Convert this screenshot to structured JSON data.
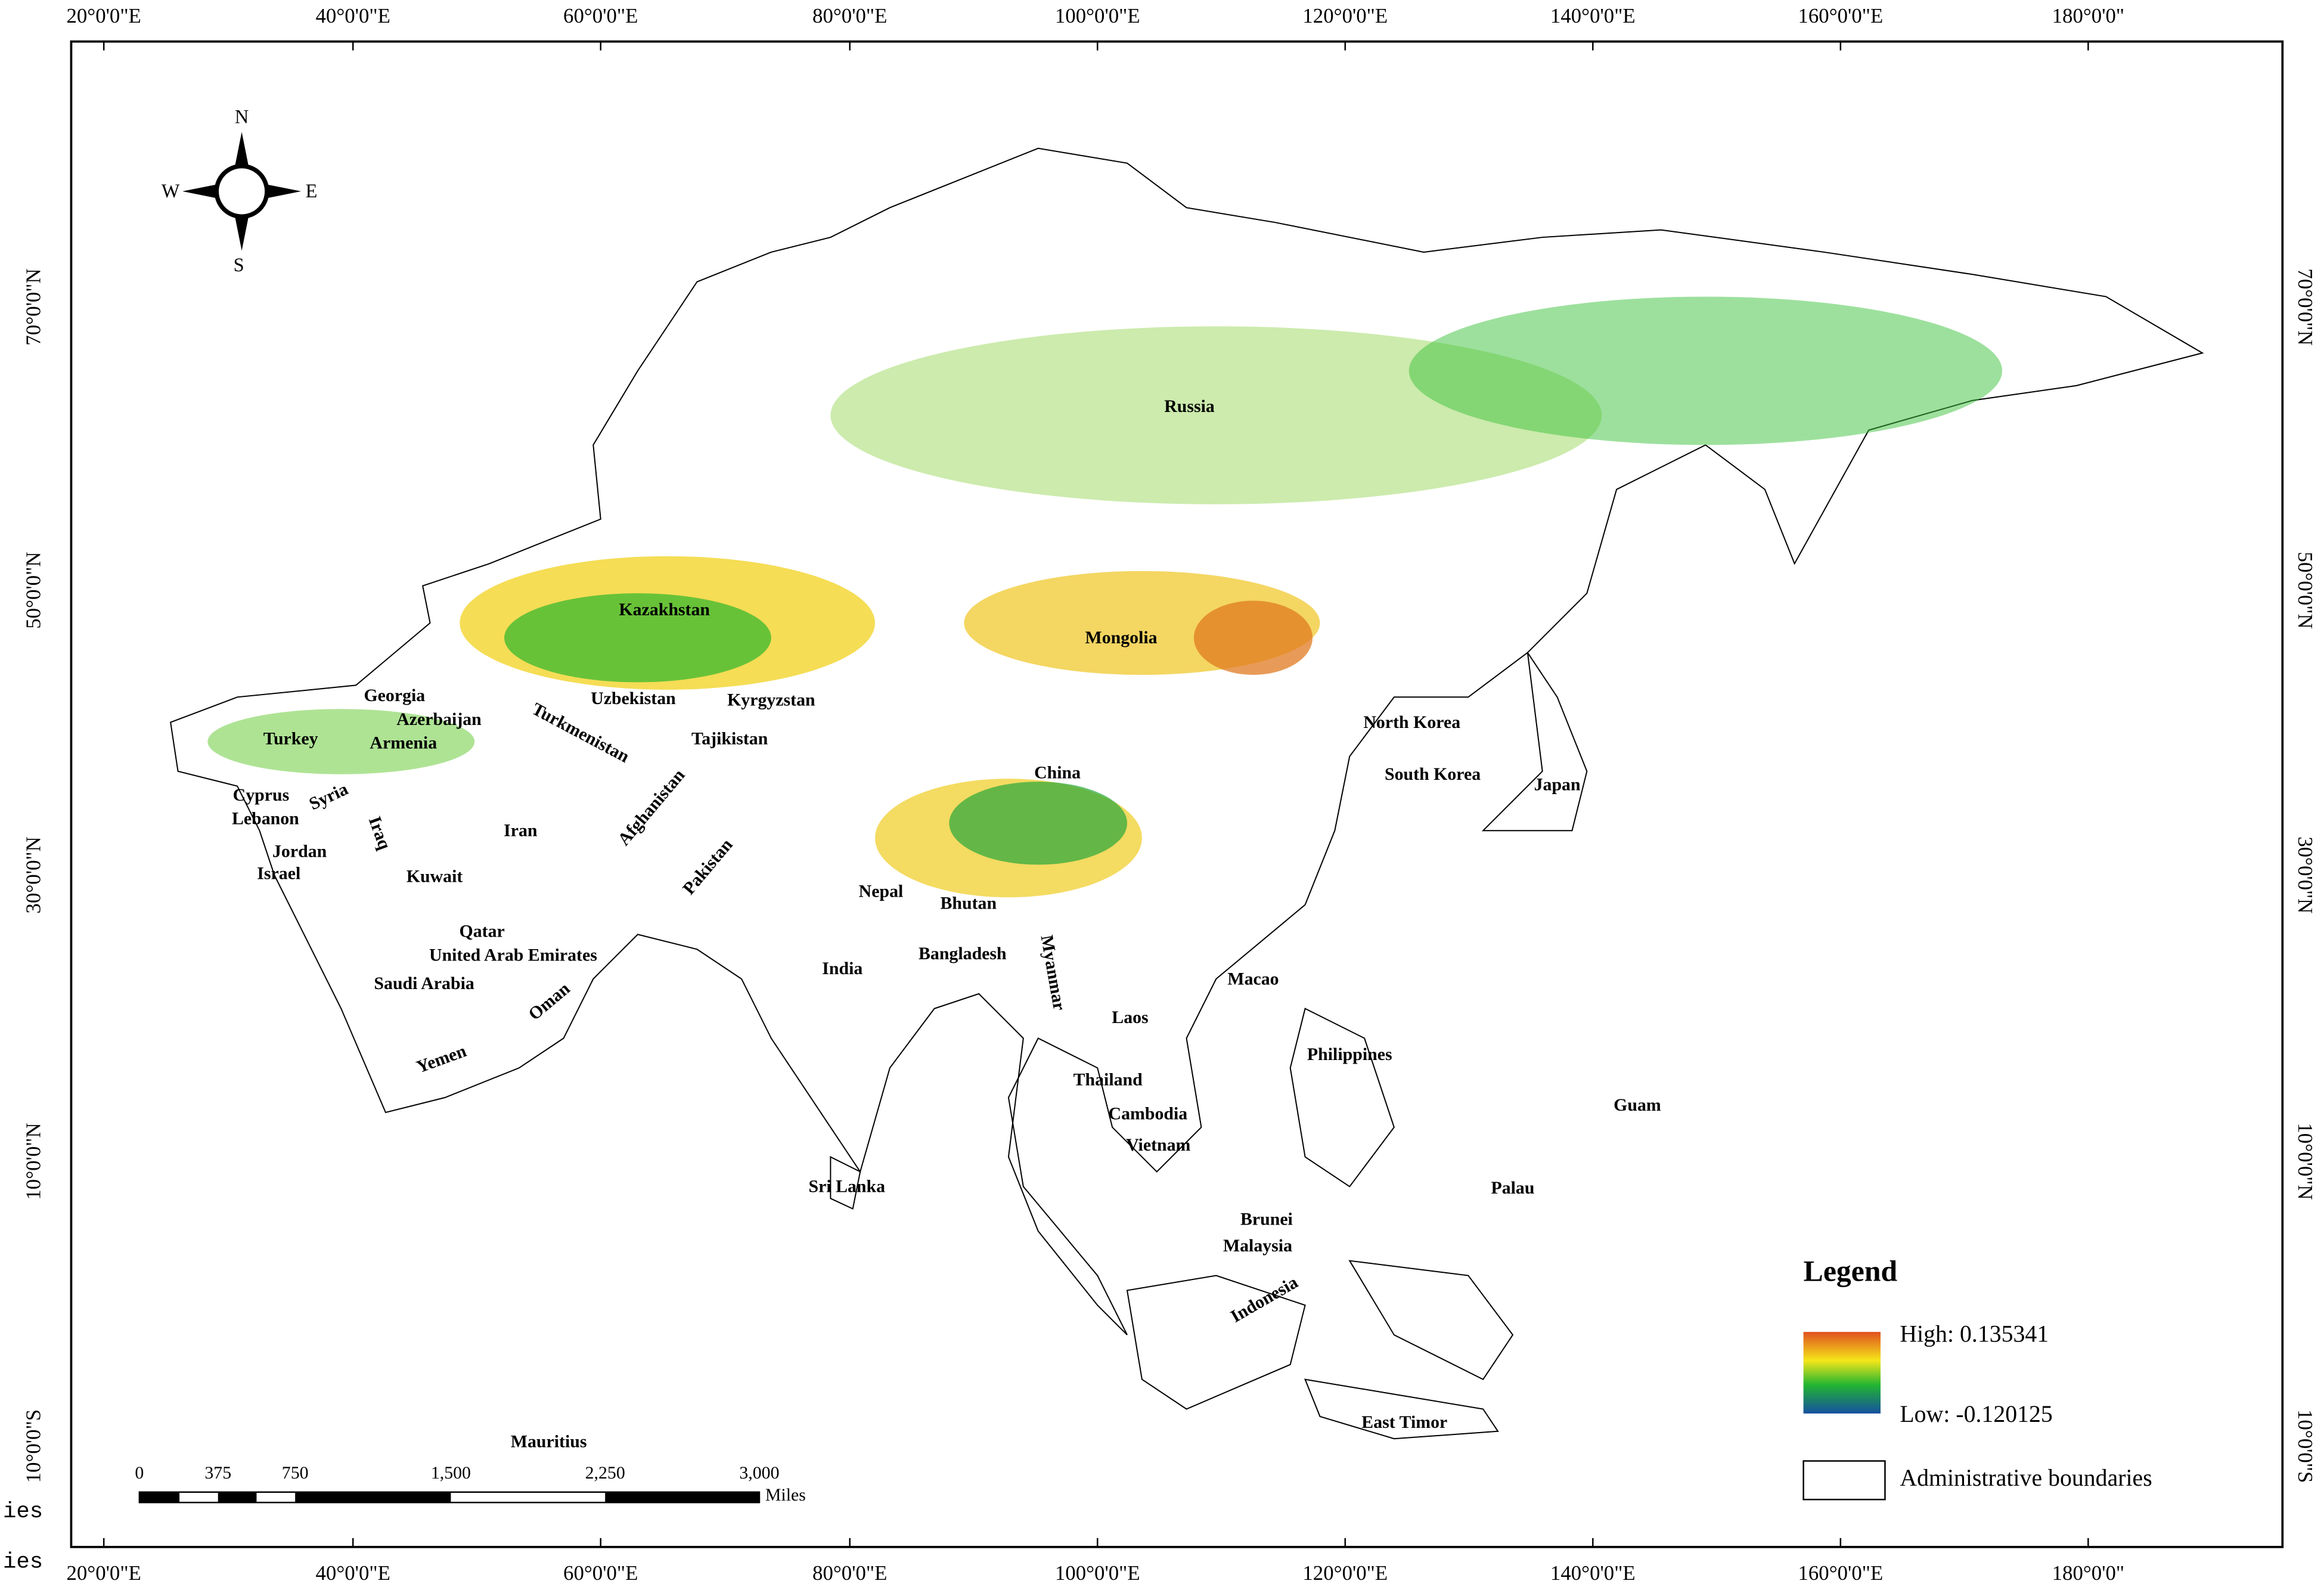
{
  "map": {
    "longitude_labels": [
      "20°0'0\"E",
      "40°0'0\"E",
      "60°0'0\"E",
      "80°0'0\"E",
      "100°0'0\"E",
      "120°0'0\"E",
      "140°0'0\"E",
      "160°0'0\"E",
      "180°0'0\""
    ],
    "latitude_labels": [
      "70°0'0\"N",
      "50°0'0\"N",
      "30°0'0\"N",
      "10°0'0\"N",
      "10°0'0\"S"
    ],
    "compass": {
      "north": "N",
      "south": "S",
      "east": "E",
      "west": "W"
    },
    "countries": [
      "Russia",
      "Kazakhstan",
      "Mongolia",
      "Georgia",
      "Azerbaijan",
      "Armenia",
      "Turkey",
      "Uzbekistan",
      "Kyrgyzstan",
      "Turkmenistan",
      "Tajikistan",
      "China",
      "North Korea",
      "South Korea",
      "Japan",
      "Cyprus",
      "Syria",
      "Lebanon",
      "Iraq",
      "Iran",
      "Afghanistan",
      "Jordan",
      "Israel",
      "Kuwait",
      "Pakistan",
      "Nepal",
      "Bhutan",
      "Qatar",
      "United Arab Emirates",
      "Myanmar",
      "Bangladesh",
      "India",
      "Saudi Arabia",
      "Oman",
      "Macao",
      "Laos",
      "Philippines",
      "Yemen",
      "Thailand",
      "Cambodia",
      "Guam",
      "Vietnam",
      "Sri Lanka",
      "Palau",
      "Brunei",
      "Malaysia",
      "Indonesia",
      "East Timor",
      "Mauritius"
    ],
    "legend": {
      "title": "Legend",
      "high": "High: 0.135341",
      "low": "Low: -0.120125",
      "boundaries": "Administrative boundaries"
    },
    "scale_bar": {
      "ticks": [
        "0",
        "375",
        "750",
        "1,500",
        "2,250",
        "3,000"
      ],
      "unit": "Miles"
    },
    "stray_text": [
      "ies",
      "ies"
    ]
  }
}
